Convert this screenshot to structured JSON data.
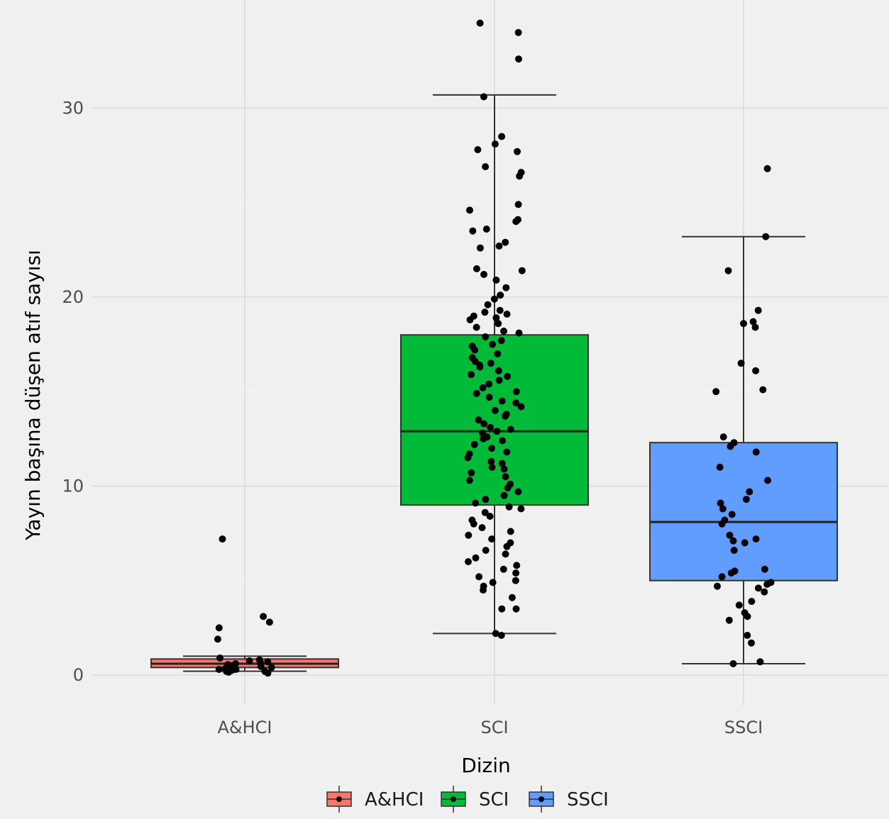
{
  "chart_data": {
    "type": "boxplot",
    "title": "",
    "xlabel": "Dizin",
    "ylabel": "Yayın başına düşen atıf sayısı",
    "ylim": [
      -1.3,
      35.3
    ],
    "yticks": [
      0,
      10,
      20,
      30
    ],
    "categories": [
      "A&HCI",
      "SCI",
      "SSCI"
    ],
    "colors": {
      "A&HCI": "#f8766d",
      "SCI": "#00ba38",
      "SSCI": "#619cff"
    },
    "grid": true,
    "legend_position": "bottom",
    "legend_entries": [
      "A&HCI",
      "SCI",
      "SSCI"
    ],
    "series": [
      {
        "name": "A&HCI",
        "box": {
          "whisker_low": 0.2,
          "q1": 0.4,
          "median": 0.6,
          "q3": 0.85,
          "whisker_high": 1.0
        },
        "points": [
          7.2,
          3.1,
          2.8,
          2.5,
          1.9,
          0.9,
          0.8,
          0.75,
          0.7,
          0.65,
          0.6,
          0.55,
          0.5,
          0.45,
          0.4,
          0.35,
          0.3,
          0.3,
          0.25,
          0.2,
          0.2,
          0.15,
          0.1
        ]
      },
      {
        "name": "SCI",
        "box": {
          "whisker_low": 2.2,
          "q1": 9.0,
          "median": 12.9,
          "q3": 18.0,
          "whisker_high": 30.7
        },
        "points": [
          34.5,
          34.0,
          32.6,
          30.6,
          28.5,
          28.1,
          27.8,
          27.7,
          26.9,
          26.6,
          26.4,
          24.9,
          24.6,
          24.1,
          24.0,
          23.6,
          23.5,
          22.9,
          22.7,
          22.6,
          21.5,
          21.4,
          21.2,
          20.9,
          20.5,
          20.1,
          19.9,
          19.6,
          19.3,
          19.2,
          19.1,
          19.0,
          18.9,
          18.8,
          18.6,
          18.4,
          18.2,
          18.1,
          17.9,
          17.7,
          17.5,
          17.4,
          17.2,
          17.0,
          16.8,
          16.6,
          16.5,
          16.4,
          16.3,
          16.1,
          15.9,
          15.8,
          15.6,
          15.4,
          15.2,
          15.0,
          14.9,
          14.7,
          14.5,
          14.4,
          14.2,
          14.0,
          13.8,
          13.7,
          13.5,
          13.3,
          13.1,
          13.0,
          12.9,
          12.8,
          12.6,
          12.5,
          12.4,
          12.2,
          12.0,
          11.8,
          11.7,
          11.5,
          11.3,
          11.2,
          11.0,
          10.9,
          10.7,
          10.5,
          10.3,
          10.1,
          9.9,
          9.7,
          9.5,
          9.3,
          9.1,
          8.9,
          8.8,
          8.6,
          8.4,
          8.2,
          8.0,
          7.8,
          7.6,
          7.4,
          7.2,
          7.0,
          6.8,
          6.6,
          6.4,
          6.2,
          6.0,
          5.8,
          5.6,
          5.4,
          5.2,
          5.0,
          4.9,
          4.7,
          4.5,
          4.1,
          3.5,
          3.5,
          2.2,
          2.1
        ]
      },
      {
        "name": "SSCI",
        "box": {
          "whisker_low": 0.6,
          "q1": 5.0,
          "median": 8.1,
          "q3": 12.3,
          "whisker_high": 23.2
        },
        "points": [
          26.8,
          23.2,
          21.4,
          19.3,
          18.7,
          18.6,
          18.4,
          16.5,
          16.1,
          15.1,
          15.0,
          12.6,
          12.3,
          12.1,
          11.8,
          11.0,
          10.3,
          9.7,
          9.3,
          9.1,
          8.8,
          8.5,
          8.2,
          8.0,
          7.4,
          7.2,
          7.1,
          7.0,
          6.6,
          5.6,
          5.5,
          5.4,
          5.2,
          4.9,
          4.8,
          4.7,
          4.6,
          4.4,
          3.9,
          3.7,
          3.3,
          3.1,
          2.9,
          2.1,
          1.7,
          0.7,
          0.6
        ]
      }
    ]
  }
}
